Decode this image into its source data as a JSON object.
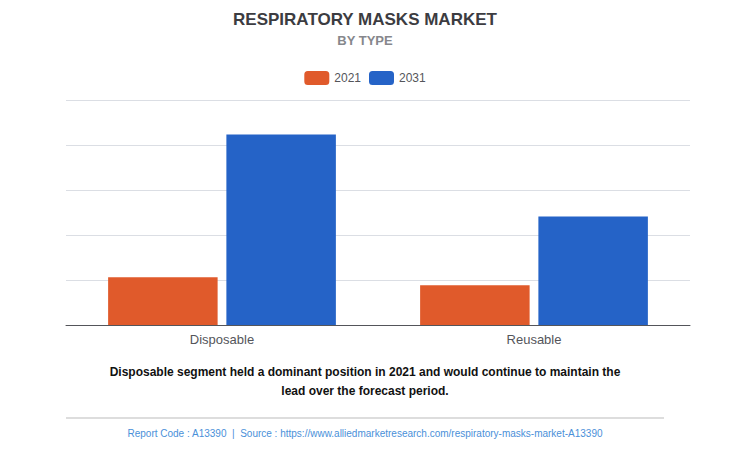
{
  "chart_data": {
    "type": "bar",
    "title": "RESPIRATORY MASKS MARKET",
    "subtitle": "BY TYPE",
    "categories": [
      "Disposable",
      "Reusable"
    ],
    "series": [
      {
        "name": "2021",
        "color": "#e05a2b",
        "values": [
          1.8,
          1.5
        ]
      },
      {
        "name": "2031",
        "color": "#2563c7",
        "values": [
          7.2,
          4.1
        ]
      }
    ],
    "ylim": [
      0,
      8.5
    ],
    "yticks": [
      0,
      1.7,
      3.4,
      5.1,
      6.8,
      8.5
    ],
    "grid": true,
    "tick_labels": "x",
    "legend": "top",
    "annotations": [
      "Disposable segment held a dominant position in 2021 and would continue to maintain the\nlead over the forecast period.",
      "Report Code : A13390  |  Source : https://www.alliedmarketresearch.com/respiratory-masks-market-A13390"
    ]
  }
}
